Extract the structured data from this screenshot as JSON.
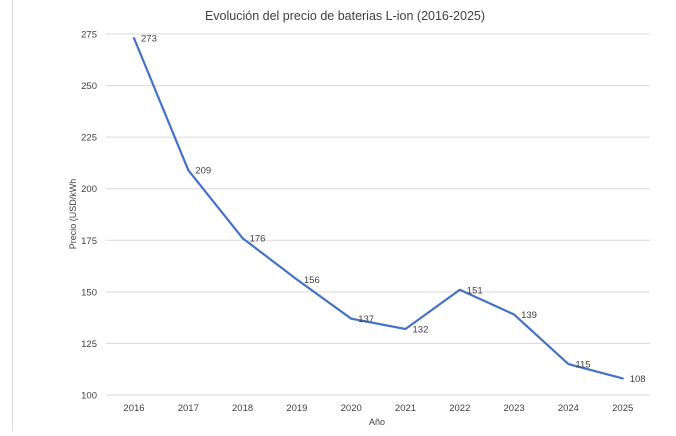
{
  "chart_data": {
    "type": "line",
    "title": "Evolución del precio de baterias L-ion (2016-2025)",
    "xlabel": "Año",
    "ylabel": "Precio (USD/kWh",
    "categories": [
      "2016",
      "2017",
      "2018",
      "2019",
      "2020",
      "2021",
      "2022",
      "2023",
      "2024",
      "2025"
    ],
    "series": [
      {
        "name": "Precio",
        "values": [
          273,
          209,
          176,
          156,
          137,
          132,
          151,
          139,
          115,
          108
        ],
        "color": "#4472c4"
      }
    ],
    "ylim": [
      100,
      275
    ],
    "yticks": [
      100,
      125,
      150,
      175,
      200,
      225,
      250,
      275
    ],
    "grid": true,
    "legend": "none"
  }
}
